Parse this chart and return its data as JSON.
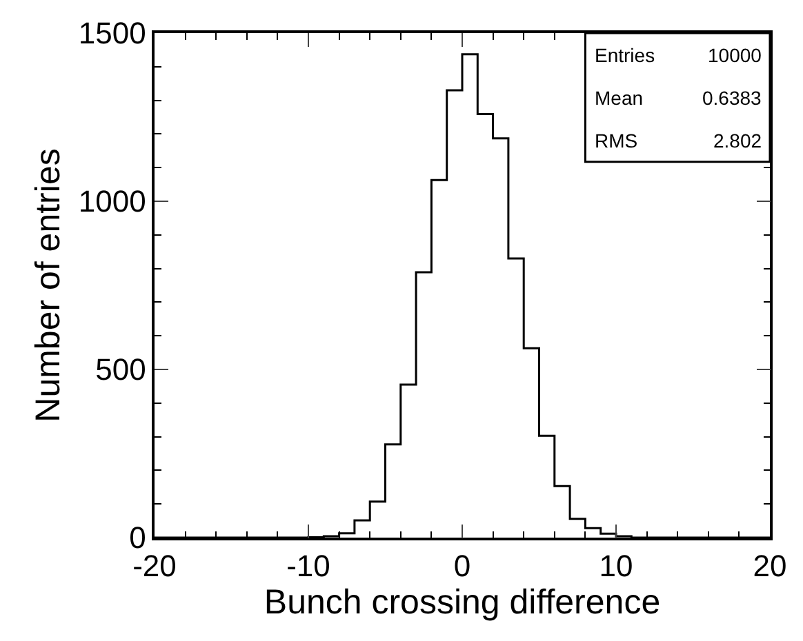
{
  "chart_data": {
    "type": "histogram",
    "xlabel": "Bunch crossing difference",
    "ylabel": "Number of entries",
    "bins": [
      -20,
      -19,
      -18,
      -17,
      -16,
      -15,
      -14,
      -13,
      -12,
      -11,
      -10,
      -9,
      -8,
      -7,
      -6,
      -5,
      -4,
      -3,
      -2,
      -1,
      0,
      1,
      2,
      3,
      4,
      5,
      6,
      7,
      8,
      9,
      10,
      11,
      12,
      13,
      14,
      15,
      16,
      17,
      18,
      19,
      20
    ],
    "values": [
      0,
      0,
      0,
      0,
      0,
      0,
      0,
      0,
      0,
      0,
      1,
      4,
      13,
      51,
      107,
      277,
      455,
      789,
      1063,
      1330,
      1437,
      1259,
      1187,
      830,
      563,
      303,
      153,
      56,
      28,
      12,
      4,
      0,
      0,
      0,
      0,
      0,
      0,
      0,
      0,
      0
    ],
    "color": "#000000",
    "xlim": [
      -20,
      20
    ],
    "xticks": [
      -20,
      -10,
      0,
      10,
      20
    ],
    "ylim": [
      0,
      1500
    ],
    "yticks": [
      0,
      500,
      1000,
      1500
    ],
    "annotations": [
      "Entries",
      "10000",
      "Mean",
      "0.6383",
      "RMS",
      "2.802"
    ]
  }
}
